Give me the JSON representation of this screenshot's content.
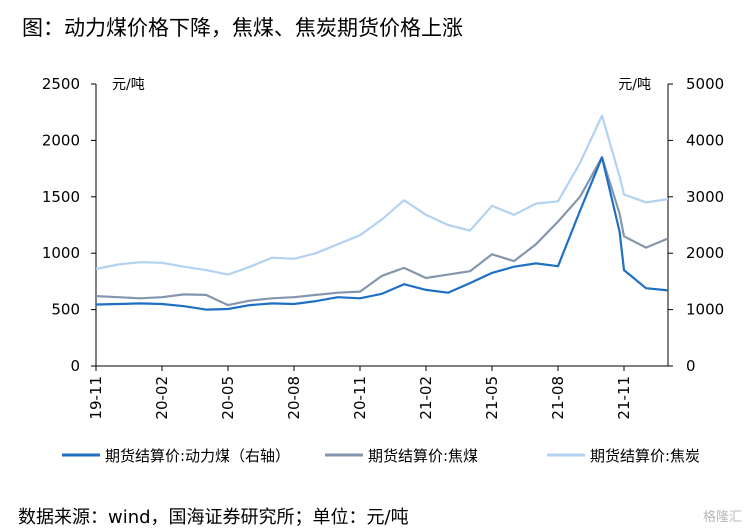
{
  "title": "图：动力煤价格下降，焦煤、焦炭期货价格上涨",
  "source": "数据来源：wind，国海证券研究所；单位：元/吨",
  "watermark": "格隆汇",
  "chart_data": {
    "type": "line",
    "left_axis": {
      "unit": "元/吨",
      "ylim": [
        0,
        2500
      ],
      "ticks": [
        0,
        500,
        1000,
        1500,
        2000,
        2500
      ]
    },
    "right_axis": {
      "unit": "元/吨",
      "ylim": [
        0,
        5000
      ],
      "ticks": [
        0,
        1000,
        2000,
        3000,
        4000,
        5000
      ]
    },
    "x_tick_labels": [
      "19-11",
      "20-02",
      "20-05",
      "20-08",
      "20-11",
      "21-02",
      "21-05",
      "21-08",
      "21-11"
    ],
    "x_range": [
      "2019-11",
      "2022-01"
    ],
    "legend_position": "bottom",
    "series": [
      {
        "name": "期货结算价:动力煤（右轴）",
        "axis": "right",
        "color": "#1f6fc5",
        "points": [
          [
            "2019-11",
            1090
          ],
          [
            "2019-12",
            1100
          ],
          [
            "2020-01",
            1110
          ],
          [
            "2020-02",
            1100
          ],
          [
            "2020-03",
            1060
          ],
          [
            "2020-04",
            1000
          ],
          [
            "2020-05",
            1010
          ],
          [
            "2020-06",
            1080
          ],
          [
            "2020-07",
            1110
          ],
          [
            "2020-08",
            1100
          ],
          [
            "2020-09",
            1150
          ],
          [
            "2020-10",
            1220
          ],
          [
            "2020-11",
            1200
          ],
          [
            "2020-12",
            1280
          ],
          [
            "2021-01",
            1450
          ],
          [
            "2021-02",
            1350
          ],
          [
            "2021-03",
            1300
          ],
          [
            "2021-04",
            1470
          ],
          [
            "2021-05",
            1650
          ],
          [
            "2021-06",
            1760
          ],
          [
            "2021-07",
            1820
          ],
          [
            "2021-08",
            1770
          ],
          [
            "2021-09",
            2750
          ],
          [
            "2021-10",
            3700
          ],
          [
            "2021-10-25",
            2380
          ],
          [
            "2021-11",
            1700
          ],
          [
            "2021-12",
            1380
          ],
          [
            "2022-01",
            1340
          ]
        ]
      },
      {
        "name": "期货结算价:焦煤",
        "axis": "left",
        "color": "#8496ae",
        "points": [
          [
            "2019-11",
            620
          ],
          [
            "2019-12",
            610
          ],
          [
            "2020-01",
            600
          ],
          [
            "2020-02",
            610
          ],
          [
            "2020-03",
            635
          ],
          [
            "2020-04",
            630
          ],
          [
            "2020-05",
            540
          ],
          [
            "2020-06",
            580
          ],
          [
            "2020-07",
            600
          ],
          [
            "2020-08",
            610
          ],
          [
            "2020-09",
            630
          ],
          [
            "2020-10",
            650
          ],
          [
            "2020-11",
            660
          ],
          [
            "2020-12",
            800
          ],
          [
            "2021-01",
            870
          ],
          [
            "2021-02",
            780
          ],
          [
            "2021-03",
            810
          ],
          [
            "2021-04",
            840
          ],
          [
            "2021-05",
            990
          ],
          [
            "2021-06",
            930
          ],
          [
            "2021-07",
            1080
          ],
          [
            "2021-08",
            1280
          ],
          [
            "2021-09",
            1500
          ],
          [
            "2021-10",
            1850
          ],
          [
            "2021-10-25",
            1350
          ],
          [
            "2021-11",
            1150
          ],
          [
            "2021-12",
            1050
          ],
          [
            "2022-01",
            1130
          ]
        ]
      },
      {
        "name": "期货结算价:焦炭",
        "axis": "left",
        "color": "#b3d2f2",
        "points": [
          [
            "2019-11",
            860
          ],
          [
            "2019-12",
            900
          ],
          [
            "2020-01",
            920
          ],
          [
            "2020-02",
            915
          ],
          [
            "2020-03",
            880
          ],
          [
            "2020-04",
            850
          ],
          [
            "2020-05",
            810
          ],
          [
            "2020-06",
            880
          ],
          [
            "2020-07",
            960
          ],
          [
            "2020-08",
            950
          ],
          [
            "2020-09",
            1000
          ],
          [
            "2020-10",
            1080
          ],
          [
            "2020-11",
            1160
          ],
          [
            "2020-12",
            1300
          ],
          [
            "2021-01",
            1470
          ],
          [
            "2021-02",
            1340
          ],
          [
            "2021-03",
            1250
          ],
          [
            "2021-04",
            1200
          ],
          [
            "2021-05",
            1420
          ],
          [
            "2021-06",
            1340
          ],
          [
            "2021-07",
            1440
          ],
          [
            "2021-08",
            1460
          ],
          [
            "2021-09",
            1800
          ],
          [
            "2021-10",
            2220
          ],
          [
            "2021-10-25",
            1680
          ],
          [
            "2021-11",
            1520
          ],
          [
            "2021-12",
            1450
          ],
          [
            "2022-01",
            1480
          ]
        ]
      }
    ]
  }
}
